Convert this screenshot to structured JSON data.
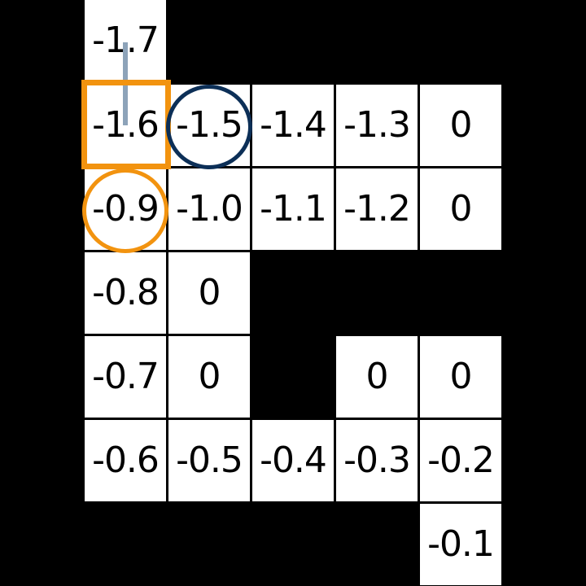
{
  "grid": {
    "cells": [
      {
        "value": "-1.7"
      },
      {
        "value": "-1.6"
      },
      {
        "value": "-1.5"
      },
      {
        "value": "-1.4"
      },
      {
        "value": "-1.3"
      },
      {
        "value": "0"
      },
      {
        "value": "-0.9"
      },
      {
        "value": "-1.0"
      },
      {
        "value": "-1.1"
      },
      {
        "value": "-1.2"
      },
      {
        "value": "0"
      },
      {
        "value": "-0.8"
      },
      {
        "value": "0"
      },
      {
        "value": "-0.7"
      },
      {
        "value": "0"
      },
      {
        "value": "0"
      },
      {
        "value": "0"
      },
      {
        "value": "-0.6"
      },
      {
        "value": "-0.5"
      },
      {
        "value": "-0.4"
      },
      {
        "value": "-0.3"
      },
      {
        "value": "-0.2"
      },
      {
        "value": "-0.1"
      }
    ]
  },
  "colors": {
    "background": "#000000",
    "cell": "#ffffff",
    "highlight_orange": "#f2930f",
    "circle_navy": "#0c2f57",
    "path_blue_gray": "#8da3b9"
  }
}
